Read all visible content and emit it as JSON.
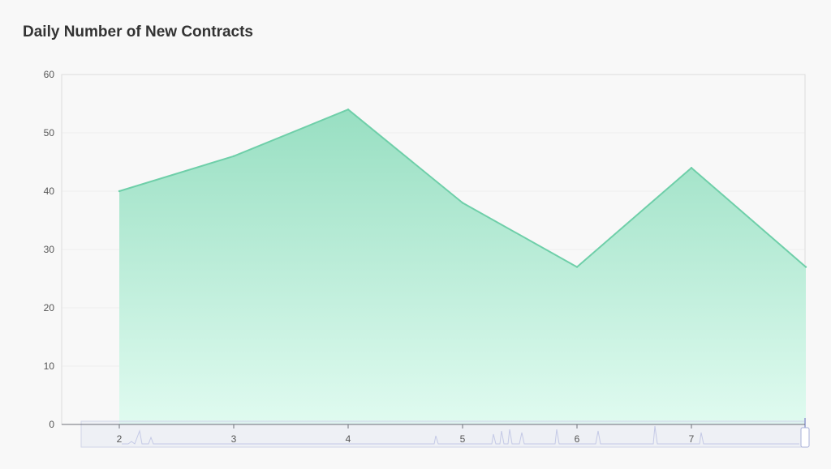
{
  "chart_data": {
    "type": "area",
    "title": "Daily Number of New Contracts",
    "xlabel": "",
    "ylabel": "",
    "x": [
      2,
      3,
      4,
      5,
      6,
      7,
      8
    ],
    "x_tick_labels": [
      "2",
      "3",
      "4",
      "5",
      "6",
      "7"
    ],
    "series": [
      {
        "values": [
          40,
          46,
          54,
          38,
          27,
          44,
          27
        ]
      }
    ],
    "ylim": [
      0,
      60
    ],
    "y_ticks": [
      0,
      10,
      20,
      30,
      40,
      50,
      60
    ],
    "grid": true,
    "legend": "none",
    "colors": {
      "line": "#6fcfa9",
      "fill_top": "#98dfc2",
      "fill_bottom": "#e0fbf0"
    }
  },
  "zoom_slider": {
    "range_start": 0,
    "range_end": 1
  }
}
